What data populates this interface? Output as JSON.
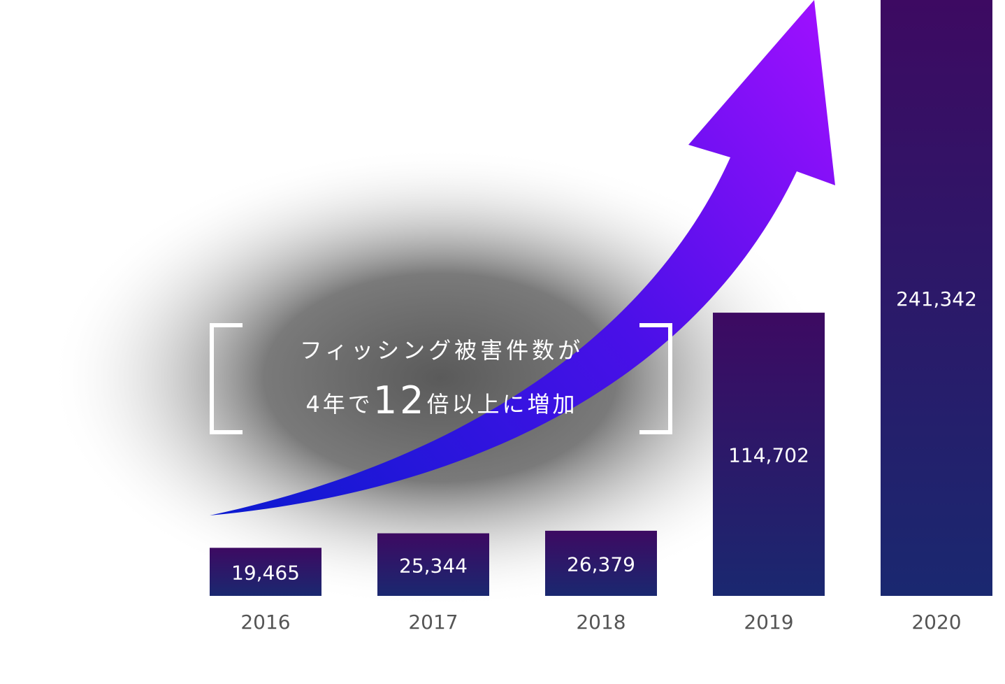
{
  "chart_data": {
    "type": "bar",
    "categories": [
      "2016",
      "2017",
      "2018",
      "2019",
      "2020"
    ],
    "values": [
      19465,
      25344,
      26379,
      114702,
      241342
    ],
    "value_labels": [
      "19,465",
      "25,344",
      "26,379",
      "114,702",
      "241,342"
    ],
    "annotation": {
      "line1": "フィッシング被害件数が",
      "line2": [
        "4年で",
        "12",
        "倍以上に増加"
      ]
    }
  }
}
